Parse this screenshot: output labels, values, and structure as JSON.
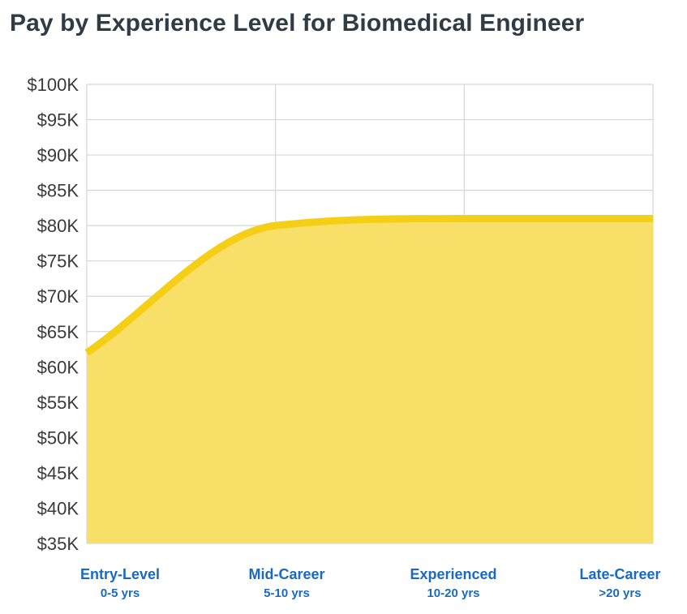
{
  "title": "Pay by Experience Level for Biomedical Engineer",
  "colors": {
    "line": "#f5cf16",
    "area": "#f8df68",
    "grid": "#d6d6d6",
    "tick_text": "#3a3a3a",
    "category_text": "#1a69c2",
    "title_text": "#2f3b45"
  },
  "chart_data": {
    "type": "area",
    "title": "Pay by Experience Level for Biomedical Engineer",
    "categories": [
      {
        "label": "Entry-Level",
        "sub": "0-5 yrs"
      },
      {
        "label": "Mid-Career",
        "sub": "5-10 yrs"
      },
      {
        "label": "Experienced",
        "sub": "10-20 yrs"
      },
      {
        "label": "Late-Career",
        "sub": ">20 yrs"
      }
    ],
    "values": [
      62000,
      80000,
      81000,
      81000
    ],
    "ylim": [
      35000,
      100000
    ],
    "yticks": [
      {
        "value": 100000,
        "label": "$100K"
      },
      {
        "value": 95000,
        "label": "$95K"
      },
      {
        "value": 90000,
        "label": "$90K"
      },
      {
        "value": 85000,
        "label": "$85K"
      },
      {
        "value": 80000,
        "label": "$80K"
      },
      {
        "value": 75000,
        "label": "$75K"
      },
      {
        "value": 70000,
        "label": "$70K"
      },
      {
        "value": 65000,
        "label": "$65K"
      },
      {
        "value": 60000,
        "label": "$60K"
      },
      {
        "value": 55000,
        "label": "$55K"
      },
      {
        "value": 50000,
        "label": "$50K"
      },
      {
        "value": 45000,
        "label": "$45K"
      },
      {
        "value": 40000,
        "label": "$40K"
      },
      {
        "value": 35000,
        "label": "$35K"
      }
    ],
    "grid": true,
    "xlabel": "",
    "ylabel": ""
  }
}
